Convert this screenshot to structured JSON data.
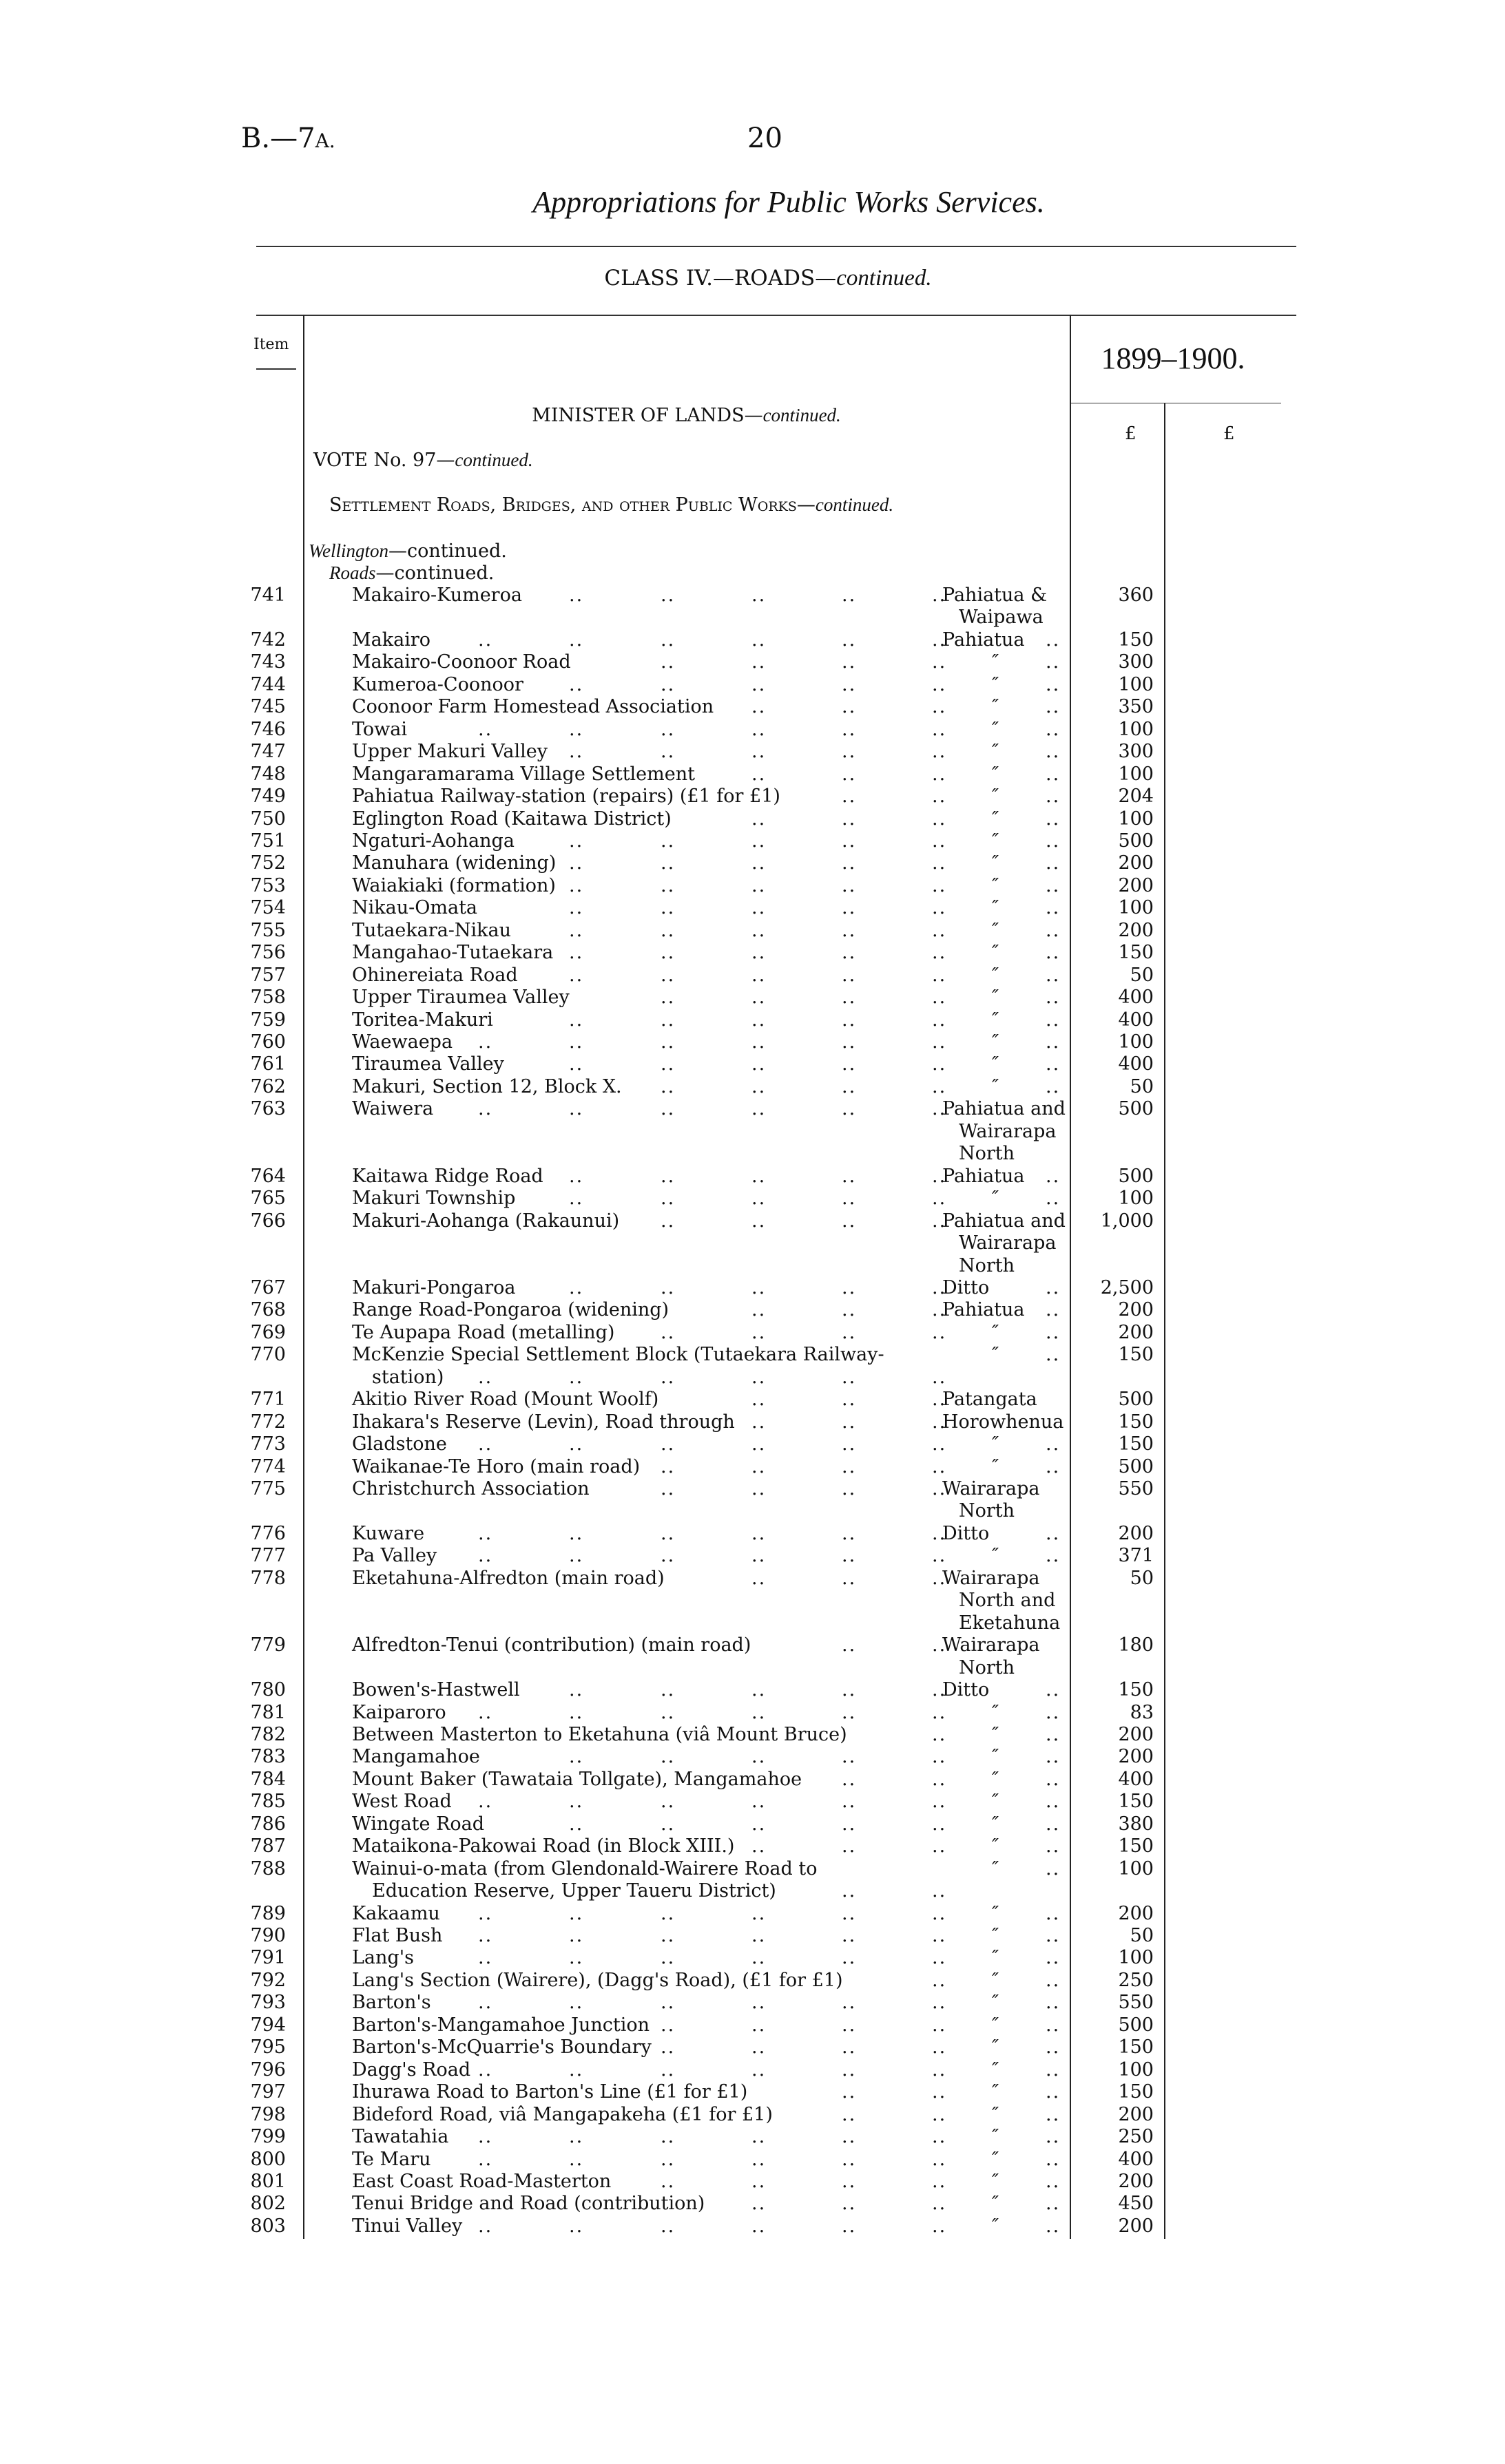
{
  "header": {
    "doc_ref": "B.—7",
    "doc_ref_suffix": "A.",
    "page_number": "20",
    "title": "Appropriations for Public Works Services.",
    "class_line": "CLASS IV.—ROADS—",
    "class_line_cont": "continued."
  },
  "table_header": {
    "item_label": "Item",
    "year": "1899–1900.",
    "currency_1": "£",
    "currency_2": "£"
  },
  "section": {
    "minister": "MINISTER OF LANDS—",
    "minister_cont": "continued.",
    "vote": "VOTE No. 97—",
    "vote_cont": "continued.",
    "settlement": "Settlement Roads, Bridges, and other Public Works—",
    "settlement_cont": "continued.",
    "region": "Wellington",
    "region_cont": "—continued.",
    "subhead": "Roads",
    "subhead_cont": "—continued."
  },
  "rows": [
    {
      "item": "741",
      "desc": "Makairo-Kumeroa",
      "loc": [
        "Pahiatua &",
        "Waipawa"
      ],
      "amount": "360"
    },
    {
      "item": "742",
      "desc": "Makairo",
      "loc": [
        "Pahiatua"
      ],
      "amount": "150"
    },
    {
      "item": "743",
      "desc": "Makairo-Coonoor Road",
      "loc": [
        "″"
      ],
      "amount": "300"
    },
    {
      "item": "744",
      "desc": "Kumeroa-Coonoor",
      "loc": [
        "″"
      ],
      "amount": "100"
    },
    {
      "item": "745",
      "desc": "Coonoor Farm Homestead Association",
      "loc": [
        "″"
      ],
      "amount": "350"
    },
    {
      "item": "746",
      "desc": "Towai",
      "loc": [
        "″"
      ],
      "amount": "100"
    },
    {
      "item": "747",
      "desc": "Upper Makuri Valley",
      "loc": [
        "″"
      ],
      "amount": "300"
    },
    {
      "item": "748",
      "desc": "Mangaramarama Village Settlement",
      "loc": [
        "″"
      ],
      "amount": "100"
    },
    {
      "item": "749",
      "desc": "Pahiatua Railway-station (repairs) (£1 for £1)",
      "loc": [
        "″"
      ],
      "amount": "204"
    },
    {
      "item": "750",
      "desc": "Eglington Road (Kaitawa District)",
      "loc": [
        "″"
      ],
      "amount": "100"
    },
    {
      "item": "751",
      "desc": "Ngaturi-Aohanga",
      "loc": [
        "″"
      ],
      "amount": "500"
    },
    {
      "item": "752",
      "desc": "Manuhara (widening)",
      "loc": [
        "″"
      ],
      "amount": "200"
    },
    {
      "item": "753",
      "desc": "Waiakiaki (formation)",
      "loc": [
        "″"
      ],
      "amount": "200"
    },
    {
      "item": "754",
      "desc": "Nikau-Omata",
      "loc": [
        "″"
      ],
      "amount": "100"
    },
    {
      "item": "755",
      "desc": "Tutaekara-Nikau",
      "loc": [
        "″"
      ],
      "amount": "200"
    },
    {
      "item": "756",
      "desc": "Mangahao-Tutaekara",
      "loc": [
        "″"
      ],
      "amount": "150"
    },
    {
      "item": "757",
      "desc": "Ohinereiata Road",
      "loc": [
        "″"
      ],
      "amount": "50"
    },
    {
      "item": "758",
      "desc": "Upper Tiraumea Valley",
      "loc": [
        "″"
      ],
      "amount": "400"
    },
    {
      "item": "759",
      "desc": "Toritea-Makuri",
      "loc": [
        "″"
      ],
      "amount": "400"
    },
    {
      "item": "760",
      "desc": "Waewaepa",
      "loc": [
        "″"
      ],
      "amount": "100"
    },
    {
      "item": "761",
      "desc": "Tiraumea Valley",
      "loc": [
        "″"
      ],
      "amount": "400"
    },
    {
      "item": "762",
      "desc": "Makuri, Section 12, Block X.",
      "loc": [
        "″"
      ],
      "amount": "50"
    },
    {
      "item": "763",
      "desc": "Waiwera",
      "loc": [
        "Pahiatua and",
        "Wairarapa",
        "North"
      ],
      "amount": "500"
    },
    {
      "item": "764",
      "desc": "Kaitawa Ridge Road",
      "loc": [
        "Pahiatua"
      ],
      "amount": "500"
    },
    {
      "item": "765",
      "desc": "Makuri Township",
      "loc": [
        "″"
      ],
      "amount": "100"
    },
    {
      "item": "766",
      "desc": "Makuri-Aohanga (Rakaunui)",
      "loc": [
        "Pahiatua and",
        "Wairarapa",
        "North"
      ],
      "amount": "1,000"
    },
    {
      "item": "767",
      "desc": "Makuri-Pongaroa",
      "loc": [
        "Ditto"
      ],
      "amount": "2,500"
    },
    {
      "item": "768",
      "desc": "Range Road-Pongaroa (widening)",
      "loc": [
        "Pahiatua"
      ],
      "amount": "200"
    },
    {
      "item": "769",
      "desc": "Te Aupapa Road (metalling)",
      "loc": [
        "″"
      ],
      "amount": "200"
    },
    {
      "item": "770",
      "desc": "McKenzie Special Settlement Block (Tutaekara Railway-",
      "desc_cont": "station)",
      "loc": [
        "″"
      ],
      "amount": "150"
    },
    {
      "item": "771",
      "desc": "Akitio River Road (Mount Woolf)",
      "loc": [
        "Patangata"
      ],
      "amount": "500"
    },
    {
      "item": "772",
      "desc": "Ihakara's Reserve (Levin), Road through",
      "loc": [
        "Horowhenua"
      ],
      "amount": "150"
    },
    {
      "item": "773",
      "desc": "Gladstone",
      "loc": [
        "″"
      ],
      "amount": "150"
    },
    {
      "item": "774",
      "desc": "Waikanae-Te Horo (main road)",
      "loc": [
        "″"
      ],
      "amount": "500"
    },
    {
      "item": "775",
      "desc": "Christchurch Association",
      "loc": [
        "Wairarapa",
        "North"
      ],
      "amount": "550"
    },
    {
      "item": "776",
      "desc": "Kuware",
      "loc": [
        "Ditto"
      ],
      "amount": "200"
    },
    {
      "item": "777",
      "desc": "Pa Valley",
      "loc": [
        "″"
      ],
      "amount": "371"
    },
    {
      "item": "778",
      "desc": "Eketahuna-Alfredton (main road)",
      "loc": [
        "Wairarapa",
        "North and",
        "Eketahuna"
      ],
      "amount": "50"
    },
    {
      "item": "779",
      "desc": "Alfredton-Tenui (contribution) (main road)",
      "loc": [
        "Wairarapa",
        "North"
      ],
      "amount": "180"
    },
    {
      "item": "780",
      "desc": "Bowen's-Hastwell",
      "loc": [
        "Ditto"
      ],
      "amount": "150"
    },
    {
      "item": "781",
      "desc": "Kaiparoro",
      "loc": [
        "″"
      ],
      "amount": "83"
    },
    {
      "item": "782",
      "desc": "Between Masterton to Eketahuna (viâ Mount Bruce)",
      "loc": [
        "″"
      ],
      "amount": "200"
    },
    {
      "item": "783",
      "desc": "Mangamahoe",
      "loc": [
        "″"
      ],
      "amount": "200"
    },
    {
      "item": "784",
      "desc": "Mount Baker (Tawataia Tollgate), Mangamahoe",
      "loc": [
        "″"
      ],
      "amount": "400"
    },
    {
      "item": "785",
      "desc": "West Road",
      "loc": [
        "″"
      ],
      "amount": "150"
    },
    {
      "item": "786",
      "desc": "Wingate Road",
      "loc": [
        "″"
      ],
      "amount": "380"
    },
    {
      "item": "787",
      "desc": "Mataikona-Pakowai Road (in Block XIII.)",
      "loc": [
        "″"
      ],
      "amount": "150"
    },
    {
      "item": "788",
      "desc": "Wainui-o-mata (from Glendonald-Wairere Road to",
      "desc_cont": "Education Reserve, Upper Taueru District)",
      "loc": [
        "″"
      ],
      "amount": "100"
    },
    {
      "item": "789",
      "desc": "Kakaamu",
      "loc": [
        "″"
      ],
      "amount": "200"
    },
    {
      "item": "790",
      "desc": "Flat Bush",
      "loc": [
        "″"
      ],
      "amount": "50"
    },
    {
      "item": "791",
      "desc": "Lang's",
      "loc": [
        "″"
      ],
      "amount": "100"
    },
    {
      "item": "792",
      "desc": "Lang's Section (Wairere), (Dagg's Road), (£1 for £1)",
      "loc": [
        "″"
      ],
      "amount": "250"
    },
    {
      "item": "793",
      "desc": "Barton's",
      "loc": [
        "″"
      ],
      "amount": "550"
    },
    {
      "item": "794",
      "desc": "Barton's-Mangamahoe Junction",
      "loc": [
        "″"
      ],
      "amount": "500"
    },
    {
      "item": "795",
      "desc": "Barton's-McQuarrie's Boundary",
      "loc": [
        "″"
      ],
      "amount": "150"
    },
    {
      "item": "796",
      "desc": "Dagg's Road",
      "loc": [
        "″"
      ],
      "amount": "100"
    },
    {
      "item": "797",
      "desc": "Ihurawa Road to Barton's Line (£1 for £1)",
      "loc": [
        "″"
      ],
      "amount": "150"
    },
    {
      "item": "798",
      "desc": "Bideford Road, viâ Mangapakeha (£1 for £1)",
      "loc": [
        "″"
      ],
      "amount": "200"
    },
    {
      "item": "799",
      "desc": "Tawatahia",
      "loc": [
        "″"
      ],
      "amount": "250"
    },
    {
      "item": "800",
      "desc": "Te Maru",
      "loc": [
        "″"
      ],
      "amount": "400"
    },
    {
      "item": "801",
      "desc": "East Coast Road-Masterton",
      "loc": [
        "″"
      ],
      "amount": "200"
    },
    {
      "item": "802",
      "desc": "Tenui Bridge and Road (contribution)",
      "loc": [
        "″"
      ],
      "amount": "450"
    },
    {
      "item": "803",
      "desc": "Tinui Valley",
      "loc": [
        "″"
      ],
      "amount": "200"
    }
  ]
}
